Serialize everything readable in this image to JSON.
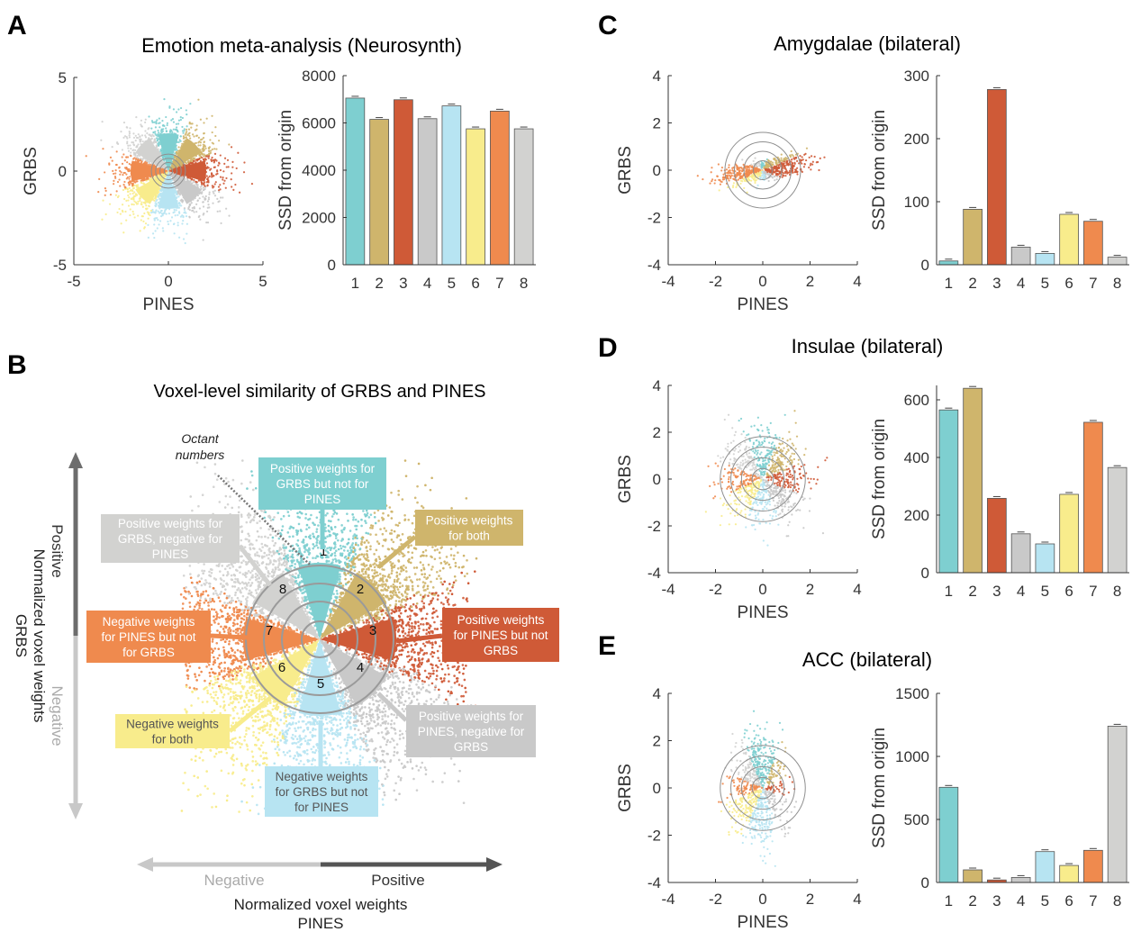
{
  "octant_colors": [
    "#7ecfd0",
    "#cfb56c",
    "#cf5a37",
    "#c9c9c9",
    "#b7e4f2",
    "#f8ec8c",
    "#ef8a4e",
    "#d2d2d0"
  ],
  "panels": {
    "A": {
      "letter": "A",
      "title": "Emotion meta-analysis (Neurosynth)"
    },
    "B": {
      "letter": "B",
      "title": "Voxel-level similarity of GRBS and PINES"
    },
    "C": {
      "letter": "C",
      "title": "Amygdalae (bilateral)"
    },
    "D": {
      "letter": "D",
      "title": "Insulae (bilateral)"
    },
    "E": {
      "letter": "E",
      "title": "ACC (bilateral)"
    }
  },
  "chart_data": [
    {
      "id": "A-scatter",
      "type": "scatter",
      "xlabel": "PINES",
      "ylabel": "GRBS",
      "xlim": [
        -5,
        5
      ],
      "ylim": [
        -5,
        5
      ],
      "xticks": [
        "-5",
        "0",
        "5"
      ],
      "yticks": [
        "5",
        "0",
        "-5"
      ],
      "rings": 4
    },
    {
      "id": "A-bar",
      "type": "bar",
      "categories": [
        "1",
        "2",
        "3",
        "4",
        "5",
        "6",
        "7",
        "8"
      ],
      "values": [
        7050,
        6150,
        6980,
        6180,
        6720,
        5750,
        6500,
        5750
      ],
      "ylabel": "SSD from origin",
      "ylim": [
        0,
        8000
      ],
      "yticks": [
        "8000",
        "6000",
        "4000",
        "2000",
        "0"
      ]
    },
    {
      "id": "C-scatter",
      "type": "scatter",
      "xlabel": "PINES",
      "ylabel": "GRBS",
      "xlim": [
        -4,
        4
      ],
      "ylim": [
        -4,
        4
      ],
      "xticks": [
        "-4",
        "-2",
        "0",
        "2",
        "4"
      ],
      "yticks": [
        "4",
        "2",
        "0",
        "-2",
        "-4"
      ],
      "rings": 4
    },
    {
      "id": "C-bar",
      "type": "bar",
      "categories": [
        "1",
        "2",
        "3",
        "4",
        "5",
        "6",
        "7",
        "8"
      ],
      "values": [
        6,
        88,
        278,
        28,
        18,
        80,
        69,
        12
      ],
      "ylabel": "SSD from origin",
      "ylim": [
        0,
        300
      ],
      "yticks": [
        "300",
        "200",
        "100",
        "0"
      ]
    },
    {
      "id": "D-scatter",
      "type": "scatter",
      "xlabel": "PINES",
      "ylabel": "GRBS",
      "xlim": [
        -4,
        4
      ],
      "ylim": [
        -4,
        4
      ],
      "xticks": [
        "-4",
        "-2",
        "0",
        "2",
        "4"
      ],
      "yticks": [
        "4",
        "2",
        "0",
        "-2",
        "-4"
      ],
      "rings": 4
    },
    {
      "id": "D-bar",
      "type": "bar",
      "categories": [
        "1",
        "2",
        "3",
        "4",
        "5",
        "6",
        "7",
        "8"
      ],
      "values": [
        565,
        640,
        258,
        135,
        100,
        272,
        522,
        365
      ],
      "ylabel": "SSD from origin",
      "ylim": [
        0,
        650
      ],
      "yticks": [
        "600",
        "400",
        "200",
        "0"
      ]
    },
    {
      "id": "E-scatter",
      "type": "scatter",
      "xlabel": "PINES",
      "ylabel": "GRBS",
      "xlim": [
        -4,
        4
      ],
      "ylim": [
        -4,
        4
      ],
      "xticks": [
        "-4",
        "-2",
        "0",
        "2",
        "4"
      ],
      "yticks": [
        "4",
        "2",
        "0",
        "-2",
        "-4"
      ],
      "rings": 4
    },
    {
      "id": "E-bar",
      "type": "bar",
      "categories": [
        "1",
        "2",
        "3",
        "4",
        "5",
        "6",
        "7",
        "8"
      ],
      "values": [
        755,
        100,
        20,
        40,
        245,
        135,
        255,
        1240
      ],
      "ylabel": "SSD from origin",
      "ylim": [
        0,
        1500
      ],
      "yticks": [
        "1500",
        "1000",
        "500",
        "0"
      ]
    }
  ],
  "diagram": {
    "octant_note": "Octant\nnumbers",
    "octant_numbers": [
      "1",
      "2",
      "3",
      "4",
      "5",
      "6",
      "7",
      "8"
    ],
    "labels": [
      "Positive weights for\nGRBS but not for\nPINES",
      "Positive weights\nfor both",
      "Positive weights\nfor PINES but not\nGRBS",
      "Positive weights for\nPINES, negative for\nGRBS",
      "Negative weights\nfor GRBS but not\nfor PINES",
      "Negative weights\nfor both",
      "Negative weights\nfor PINES but not\nfor GRBS",
      "Positive weights for\nGRBS, negative for\nPINES"
    ],
    "y_axis": {
      "positive": "Positive",
      "negative": "Negative",
      "title1": "Normalized voxel weights",
      "title2": "GRBS"
    },
    "x_axis": {
      "negative": "Negative",
      "positive": "Positive",
      "title1": "Normalized voxel weights",
      "title2": "PINES"
    }
  }
}
